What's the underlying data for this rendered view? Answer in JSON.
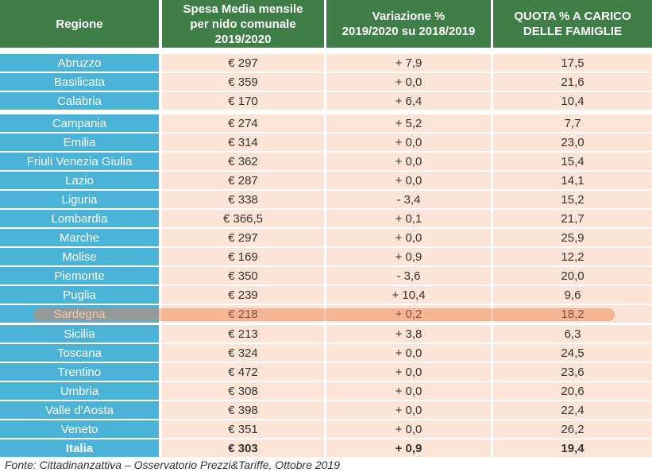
{
  "table": {
    "headers": [
      "Regione",
      "Spesa Media mensile\nper nido comunale\n2019/2020",
      "Variazione %\n2019/2020 su 2018/2019",
      "QUOTA % A CARICO\nDELLE FAMIGLIE"
    ],
    "rows": [
      {
        "regione": "Abruzzo",
        "spesa": "€ 297",
        "variazione": "+ 7,9",
        "quota": "17,5"
      },
      {
        "regione": "Basilicata",
        "spesa": "€ 359",
        "variazione": "+ 0,0",
        "quota": "21,6"
      },
      {
        "regione": "Calabria",
        "spesa": "€ 170",
        "variazione": "+ 6,4",
        "quota": "10,4"
      },
      {
        "regione": "Campania",
        "spesa": "€ 274",
        "variazione": "+ 5,2",
        "quota": "7,7"
      },
      {
        "regione": "Emilia",
        "spesa": "€ 314",
        "variazione": "+ 0,0",
        "quota": "23,0"
      },
      {
        "regione": "Friuli Venezia Giulia",
        "spesa": "€ 362",
        "variazione": "+ 0,0",
        "quota": "15,4"
      },
      {
        "regione": "Lazio",
        "spesa": "€ 287",
        "variazione": "+ 0,0",
        "quota": "14,1"
      },
      {
        "regione": "Liguria",
        "spesa": "€ 338",
        "variazione": "- 3,4",
        "quota": "15,2"
      },
      {
        "regione": "Lombardia",
        "spesa": "€ 366,5",
        "variazione": "+ 0,1",
        "quota": "21,7"
      },
      {
        "regione": "Marche",
        "spesa": "€ 297",
        "variazione": "+ 0,0",
        "quota": "25,9"
      },
      {
        "regione": "Molise",
        "spesa": "€ 169",
        "variazione": "+ 0,9",
        "quota": "12,2"
      },
      {
        "regione": "Piemonte",
        "spesa": "€ 350",
        "variazione": "- 3,6",
        "quota": "20,0"
      },
      {
        "regione": "Puglia",
        "spesa": "€ 239",
        "variazione": "+ 10,4",
        "quota": "9,6"
      },
      {
        "regione": "Sardegna",
        "spesa": "€ 218",
        "variazione": "+ 0,2",
        "quota": "18,2"
      },
      {
        "regione": "Sicilia",
        "spesa": "€ 213",
        "variazione": "+ 3,8",
        "quota": "6,3"
      },
      {
        "regione": "Toscana",
        "spesa": "€ 324",
        "variazione": "+ 0,0",
        "quota": "24,5"
      },
      {
        "regione": "Trentino",
        "spesa": "€ 472",
        "variazione": "+ 0,0",
        "quota": "23,6"
      },
      {
        "regione": "Umbria",
        "spesa": "€ 308",
        "variazione": "+ 0,0",
        "quota": "20,6"
      },
      {
        "regione": "Valle d'Aosta",
        "spesa": "€ 398",
        "variazione": "+ 0,0",
        "quota": "22,4"
      },
      {
        "regione": "Veneto",
        "spesa": "€ 351",
        "variazione": "+ 0,0",
        "quota": "26,2"
      }
    ],
    "total": {
      "regione": "Italia",
      "spesa": "€ 303",
      "variazione": "+ 0,9",
      "quota": "19,4"
    },
    "highlighted_row": "Sardegna"
  },
  "source": "Fonte: Cittadinanzattiva – Osservatorio Prezzi&Tariffe, Ottobre 2019",
  "colors": {
    "header_bg": "#3f7e46",
    "region_bg": "#4bb3d8",
    "value_bg": "#fce4d6",
    "highlight": "#ed7d4b"
  }
}
